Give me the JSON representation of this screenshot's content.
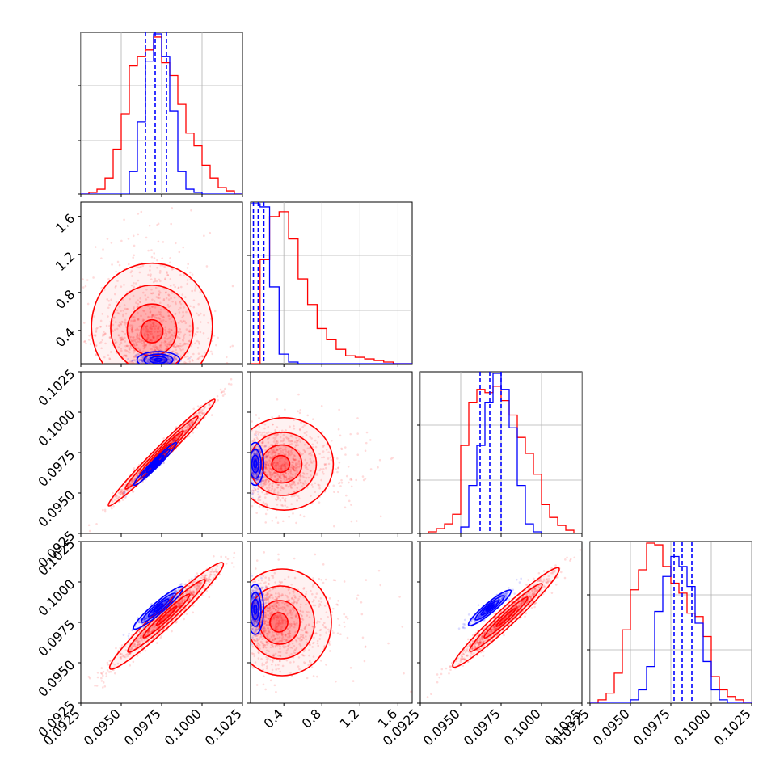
{
  "chart_data": {
    "type": "corner",
    "colors": {
      "run_a": "#ff0000",
      "run_b": "#0000ff",
      "grid": "#b0b0b0"
    },
    "grid": true,
    "quantile_lines": {
      "style": "dashed",
      "color": "#0000ff",
      "count": 3
    },
    "parameters": [
      {
        "range": [
          0.0925,
          0.1025
        ],
        "tick_labels": [
          "0.0925",
          "0.0950",
          "0.0975",
          "0.1000",
          "0.1025"
        ]
      },
      {
        "range": [
          0.05,
          1.75
        ],
        "tick_labels": [
          "0.4",
          "0.8",
          "1.2",
          "1.6"
        ]
      },
      {
        "range": [
          0.0925,
          0.1025
        ],
        "tick_labels": [
          "0.0925",
          "0.0950",
          "0.0975",
          "0.1000",
          "0.1025"
        ]
      },
      {
        "range": [
          0.0925,
          0.1025
        ],
        "tick_labels": [
          "0.0925",
          "0.0950",
          "0.0975",
          "0.1000",
          "0.1025"
        ]
      }
    ],
    "histograms": [
      {
        "bin_edges": [
          0.0925,
          0.093,
          0.0935,
          0.094,
          0.0945,
          0.095,
          0.0955,
          0.096,
          0.0965,
          0.097,
          0.0975,
          0.098,
          0.0985,
          0.099,
          0.0995,
          0.1,
          0.1005,
          0.101,
          0.1015,
          0.102,
          0.1025
        ],
        "red": [
          0,
          1,
          3,
          10,
          28,
          50,
          80,
          86,
          90,
          98,
          82,
          74,
          56,
          38,
          30,
          18,
          10,
          4,
          2,
          0
        ],
        "blue": [
          0,
          0,
          0,
          0,
          0,
          0,
          14,
          45,
          83,
          100,
          86,
          52,
          14,
          3,
          1,
          0,
          0,
          0,
          0,
          0
        ],
        "quantiles": [
          0.0965,
          0.0971,
          0.0978
        ]
      },
      {
        "bin_edges": [
          0.05,
          0.15,
          0.25,
          0.35,
          0.45,
          0.55,
          0.65,
          0.75,
          0.85,
          0.95,
          1.05,
          1.15,
          1.25,
          1.35,
          1.45,
          1.55,
          1.65,
          1.75
        ],
        "red": [
          0,
          65,
          92,
          95,
          78,
          53,
          37,
          22,
          15,
          9,
          5,
          4,
          3,
          2,
          1,
          0,
          0
        ],
        "blue": [
          100,
          98,
          48,
          6,
          1,
          0,
          0,
          0,
          0,
          0,
          0,
          0,
          0,
          0,
          0,
          0,
          0
        ],
        "quantiles": [
          0.08,
          0.13,
          0.19
        ]
      },
      {
        "bin_edges": [
          0.0925,
          0.093,
          0.0935,
          0.094,
          0.0945,
          0.095,
          0.0955,
          0.096,
          0.0965,
          0.097,
          0.0975,
          0.098,
          0.0985,
          0.099,
          0.0995,
          0.1,
          0.1005,
          0.101,
          0.1015,
          0.102,
          0.1025
        ],
        "red": [
          0,
          1,
          3,
          6,
          12,
          55,
          82,
          90,
          88,
          92,
          83,
          74,
          60,
          50,
          37,
          18,
          10,
          5,
          2,
          0
        ],
        "blue": [
          0,
          0,
          0,
          0,
          0,
          4,
          30,
          55,
          82,
          100,
          90,
          66,
          30,
          6,
          1,
          0,
          0,
          0,
          0,
          0
        ],
        "quantiles": [
          0.0962,
          0.0968,
          0.0975
        ]
      },
      {
        "bin_edges": [
          0.0925,
          0.093,
          0.0935,
          0.094,
          0.0945,
          0.095,
          0.0955,
          0.096,
          0.0965,
          0.097,
          0.0975,
          0.098,
          0.0985,
          0.099,
          0.0995,
          0.1,
          0.1005,
          0.101,
          0.1015,
          0.102,
          0.1025
        ],
        "red": [
          0,
          2,
          6,
          18,
          44,
          68,
          80,
          96,
          95,
          82,
          72,
          66,
          54,
          52,
          40,
          16,
          8,
          4,
          2,
          0
        ],
        "blue": [
          0,
          0,
          0,
          0,
          0,
          2,
          8,
          22,
          55,
          76,
          88,
          82,
          70,
          48,
          25,
          8,
          2,
          0,
          0,
          0
        ],
        "quantiles": [
          0.0977,
          0.0982,
          0.0988
        ]
      }
    ],
    "pairs": [
      {
        "x": 0,
        "y": 1,
        "red": {
          "center": [
            0.0969,
            0.38
          ],
          "sd": [
            0.0017,
            0.28
          ],
          "tilt": -12,
          "skew": 0.4
        },
        "blue": {
          "center": [
            0.0973,
            0.09
          ],
          "sd": [
            0.0006,
            0.04
          ],
          "tilt": 0,
          "skew": 0
        }
      },
      {
        "x": 0,
        "y": 2,
        "red": {
          "center": [
            0.0975,
            0.0975
          ],
          "sd": [
            0.0015,
            0.0015
          ],
          "corr": 0.985
        },
        "blue": {
          "center": [
            0.0971,
            0.0968
          ],
          "sd": [
            0.0006,
            0.0006
          ],
          "corr": 0.97
        }
      },
      {
        "x": 0,
        "y": 3,
        "red": {
          "center": [
            0.0978,
            0.0979
          ],
          "sd": [
            0.0016,
            0.0015
          ],
          "corr": 0.97
        },
        "blue": {
          "center": [
            0.0973,
            0.0984
          ],
          "sd": [
            0.0007,
            0.0006
          ],
          "corr": 0.94
        }
      },
      {
        "x": 1,
        "y": 2,
        "red": {
          "center": [
            0.36,
            0.0968
          ],
          "sd": [
            0.22,
            0.0013
          ],
          "tilt": 0,
          "skew": 0.35
        },
        "blue": {
          "center": [
            0.1,
            0.0968
          ],
          "sd": [
            0.04,
            0.0006
          ],
          "tilt": 0,
          "skew": 0
        }
      },
      {
        "x": 1,
        "y": 3,
        "red": {
          "center": [
            0.34,
            0.0975
          ],
          "sd": [
            0.22,
            0.0015
          ],
          "tilt": 0,
          "skew": 0.35
        },
        "blue": {
          "center": [
            0.1,
            0.0983
          ],
          "sd": [
            0.04,
            0.0007
          ],
          "tilt": 0,
          "skew": 0
        }
      },
      {
        "x": 2,
        "y": 3,
        "red": {
          "center": [
            0.0978,
            0.0978
          ],
          "sd": [
            0.0015,
            0.0014
          ],
          "corr": 0.97
        },
        "blue": {
          "center": [
            0.0968,
            0.0984
          ],
          "sd": [
            0.0006,
            0.0005
          ],
          "corr": 0.93
        }
      }
    ]
  }
}
